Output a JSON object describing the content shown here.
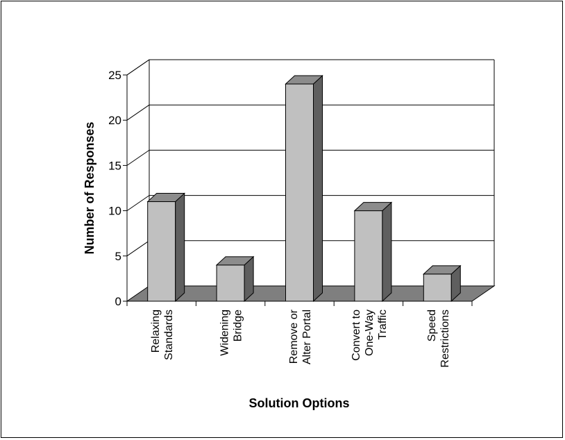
{
  "chart_data": {
    "type": "bar",
    "style": "3d-column",
    "categories": [
      "Relaxing Standards",
      "Widening Bridge",
      "Remove or Alter Portal",
      "Convert to One-Way Traffic",
      "Speed Restrictions"
    ],
    "category_label_lines": [
      [
        "Relaxing",
        "Standards"
      ],
      [
        "Widening",
        "Bridge"
      ],
      [
        "Remove or",
        "Alter Portal"
      ],
      [
        "Convert to",
        "One-Way",
        "Traffic"
      ],
      [
        "Speed",
        "Restrictions"
      ]
    ],
    "values": [
      11,
      4,
      24,
      10,
      3
    ],
    "yticks": [
      0,
      5,
      10,
      15,
      20,
      25
    ],
    "ylim": [
      0,
      25
    ],
    "xlabel": "Solution Options",
    "ylabel": "Number of Responses",
    "grid": true,
    "colors": {
      "bar_front": "#c0c0c0",
      "bar_side": "#5f5f5f",
      "bar_top": "#8c8c8c",
      "floor": "#7f7f7f",
      "gridline": "#000000",
      "stroke": "#000000"
    }
  }
}
